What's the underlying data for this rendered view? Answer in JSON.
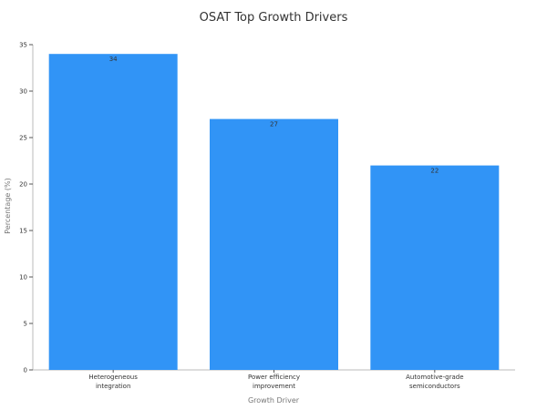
{
  "chart_data": {
    "type": "bar",
    "title": "OSAT Top Growth Drivers",
    "xlabel": "Growth Driver",
    "ylabel": "Percentage (%)",
    "categories": [
      [
        "Heterogeneous",
        "integration"
      ],
      [
        "Power efficiency",
        "improvement"
      ],
      [
        "Automotive-grade",
        "semiconductors"
      ]
    ],
    "values": [
      34,
      27,
      22
    ],
    "ylim": [
      0,
      35
    ],
    "yticks": [
      0,
      5,
      10,
      15,
      20,
      25,
      30,
      35
    ],
    "grid": false,
    "legend": "none",
    "bar_color": "#3194f6",
    "data_labels": true
  }
}
